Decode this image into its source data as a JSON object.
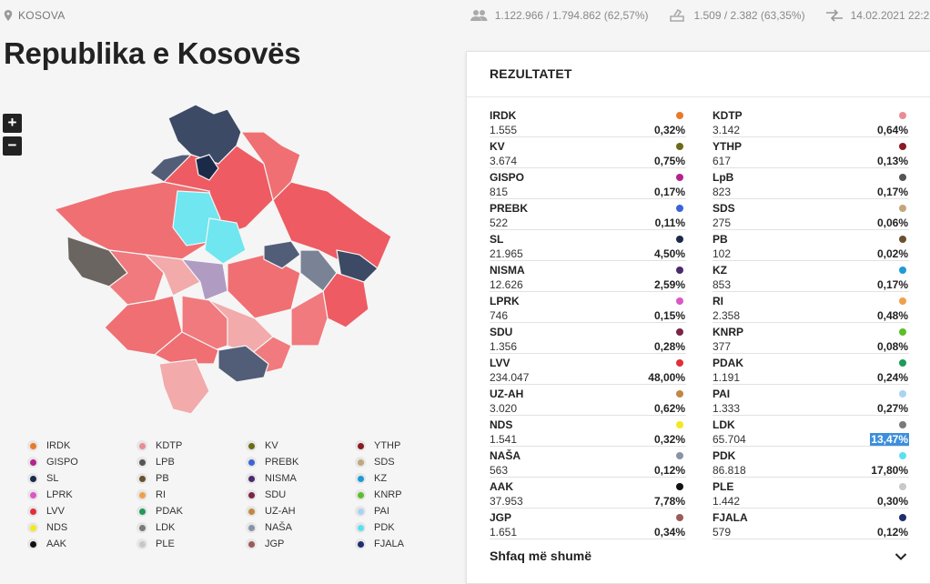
{
  "header": {
    "location": "KOSOVA",
    "voters": "1.122.966 / 1.794.862 (62,57%)",
    "stations": "1.509 / 2.382 (63,35%)",
    "updated": "14.02.2021 22:29"
  },
  "page_title": "Republika e Kosovës",
  "zoom": {
    "in_label": "+",
    "out_label": "−"
  },
  "results": {
    "title": "REZULTATET",
    "show_more": "Shfaq më shumë",
    "left": [
      {
        "name": "IRDK",
        "votes": "1.555",
        "pct": "0,32%",
        "color": "#e87a2a"
      },
      {
        "name": "KV",
        "votes": "3.674",
        "pct": "0,75%",
        "color": "#6b6b16"
      },
      {
        "name": "GISPO",
        "votes": "815",
        "pct": "0,17%",
        "color": "#b4238e"
      },
      {
        "name": "PREBK",
        "votes": "522",
        "pct": "0,11%",
        "color": "#3c64d8"
      },
      {
        "name": "SL",
        "votes": "21.965",
        "pct": "4,50%",
        "color": "#1c2a4a"
      },
      {
        "name": "NISMA",
        "votes": "12.626",
        "pct": "2,59%",
        "color": "#4a2b6b"
      },
      {
        "name": "LPRK",
        "votes": "746",
        "pct": "0,15%",
        "color": "#d957c8"
      },
      {
        "name": "SDU",
        "votes": "1.356",
        "pct": "0,28%",
        "color": "#7a2546"
      },
      {
        "name": "LVV",
        "votes": "234.047",
        "pct": "48,00%",
        "color": "#e0303c"
      },
      {
        "name": "UZ-AH",
        "votes": "3.020",
        "pct": "0,62%",
        "color": "#c08844"
      },
      {
        "name": "NDS",
        "votes": "1.541",
        "pct": "0,32%",
        "color": "#f5e81c"
      },
      {
        "name": "NAŠA",
        "votes": "563",
        "pct": "0,12%",
        "color": "#8893a8"
      },
      {
        "name": "AAK",
        "votes": "37.953",
        "pct": "7,78%",
        "color": "#111111"
      },
      {
        "name": "JGP",
        "votes": "1.651",
        "pct": "0,34%",
        "color": "#9c5a5a"
      }
    ],
    "right": [
      {
        "name": "KDTP",
        "votes": "3.142",
        "pct": "0,64%",
        "color": "#e88c96"
      },
      {
        "name": "YTHP",
        "votes": "617",
        "pct": "0,13%",
        "color": "#8c1a22"
      },
      {
        "name": "LpB",
        "votes": "823",
        "pct": "0,17%",
        "color": "#555555"
      },
      {
        "name": "SDS",
        "votes": "275",
        "pct": "0,06%",
        "color": "#c2a77c"
      },
      {
        "name": "PB",
        "votes": "102",
        "pct": "0,02%",
        "color": "#6b5030"
      },
      {
        "name": "KZ",
        "votes": "853",
        "pct": "0,17%",
        "color": "#1f9bd6"
      },
      {
        "name": "RI",
        "votes": "2.358",
        "pct": "0,48%",
        "color": "#f0a04a"
      },
      {
        "name": "KNRP",
        "votes": "377",
        "pct": "0,08%",
        "color": "#5cbf2a"
      },
      {
        "name": "PDAK",
        "votes": "1.191",
        "pct": "0,24%",
        "color": "#1e9a5a"
      },
      {
        "name": "PAI",
        "votes": "1.333",
        "pct": "0,27%",
        "color": "#a8d4f0"
      },
      {
        "name": "LDK",
        "votes": "65.704",
        "pct": "13,47%",
        "color": "#7a7a7a"
      },
      {
        "name": "PDK",
        "votes": "86.818",
        "pct": "17,80%",
        "color": "#5ce0ee"
      },
      {
        "name": "PLE",
        "votes": "1.442",
        "pct": "0,30%",
        "color": "#c8c8c8"
      },
      {
        "name": "FJALA",
        "votes": "579",
        "pct": "0,12%",
        "color": "#1e2e6e"
      }
    ]
  },
  "legend": [
    {
      "name": "IRDK",
      "color": "#e87a2a"
    },
    {
      "name": "KDTP",
      "color": "#e88c96"
    },
    {
      "name": "KV",
      "color": "#6b6b16"
    },
    {
      "name": "YTHP",
      "color": "#8c1a22"
    },
    {
      "name": "GISPO",
      "color": "#b4238e"
    },
    {
      "name": "LPB",
      "color": "#555555"
    },
    {
      "name": "PREBK",
      "color": "#3c64d8"
    },
    {
      "name": "SDS",
      "color": "#c2a77c"
    },
    {
      "name": "SL",
      "color": "#1c2a4a"
    },
    {
      "name": "PB",
      "color": "#6b5030"
    },
    {
      "name": "NISMA",
      "color": "#4a2b6b"
    },
    {
      "name": "KZ",
      "color": "#1f9bd6"
    },
    {
      "name": "LPRK",
      "color": "#d957c8"
    },
    {
      "name": "RI",
      "color": "#f0a04a"
    },
    {
      "name": "SDU",
      "color": "#7a2546"
    },
    {
      "name": "KNRP",
      "color": "#5cbf2a"
    },
    {
      "name": "LVV",
      "color": "#e0303c"
    },
    {
      "name": "PDAK",
      "color": "#1e9a5a"
    },
    {
      "name": "UZ-AH",
      "color": "#c08844"
    },
    {
      "name": "PAI",
      "color": "#a8d4f0"
    },
    {
      "name": "NDS",
      "color": "#f5e81c"
    },
    {
      "name": "LDK",
      "color": "#7a7a7a"
    },
    {
      "name": "NAŠA",
      "color": "#8893a8"
    },
    {
      "name": "PDK",
      "color": "#5ce0ee"
    },
    {
      "name": "AAK",
      "color": "#111111"
    },
    {
      "name": "PLE",
      "color": "#c8c8c8"
    },
    {
      "name": "JGP",
      "color": "#9c5a5a"
    },
    {
      "name": "FJALA",
      "color": "#1e2e6e"
    }
  ]
}
